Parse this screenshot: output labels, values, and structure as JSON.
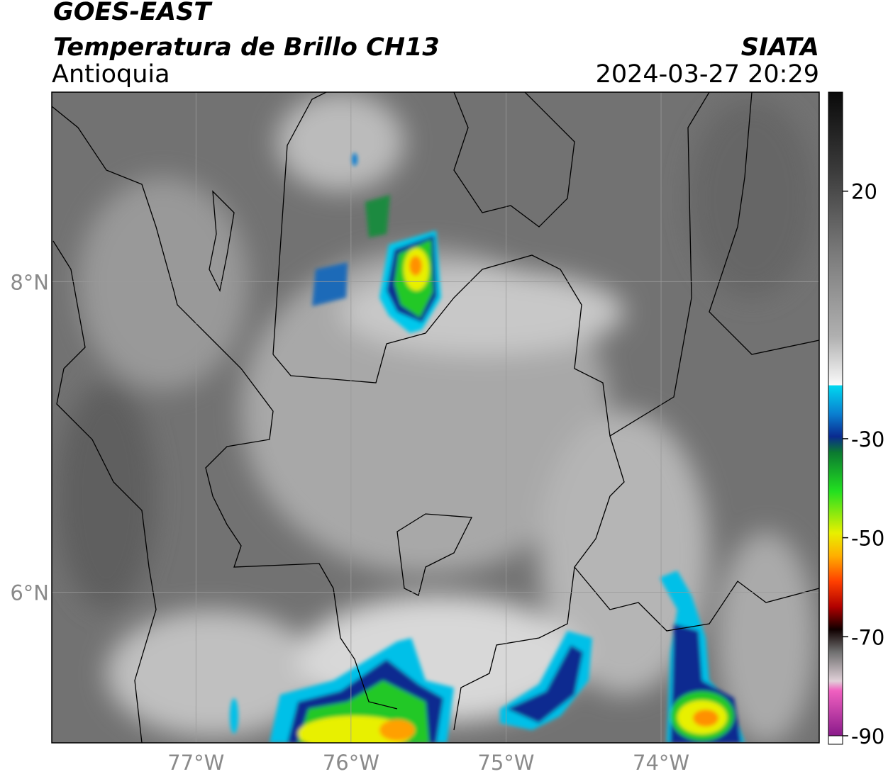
{
  "header": {
    "title": "GOES-EAST",
    "subtitle": "Temperatura de Brillo CH13",
    "region": "Antioquia",
    "source": "SIATA",
    "datetime": "2024-03-27 20:29"
  },
  "map": {
    "lonlim": [
      -77.93,
      -72.98
    ],
    "latlim": [
      5.03,
      9.22
    ],
    "lon_ticks": [
      {
        "value": -77,
        "label": "77°W"
      },
      {
        "value": -76,
        "label": "76°W"
      },
      {
        "value": -75,
        "label": "75°W"
      },
      {
        "value": -74,
        "label": "74°W"
      }
    ],
    "lat_ticks": [
      {
        "value": 8,
        "label": "8°N"
      },
      {
        "value": 6,
        "label": "6°N"
      }
    ]
  },
  "colorbar": {
    "range": [
      -90,
      40
    ],
    "ticks": [
      20,
      -30,
      -50,
      -70,
      -90
    ]
  }
}
